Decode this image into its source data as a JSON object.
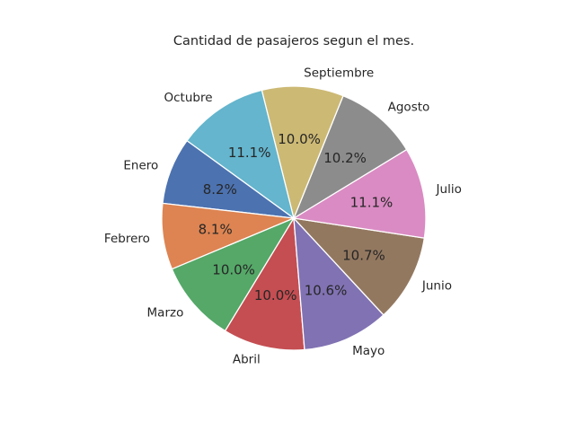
{
  "chart_data": {
    "type": "pie",
    "title": "Cantidad de pasajeros segun el mes.",
    "categories": [
      "Enero",
      "Febrero",
      "Marzo",
      "Abril",
      "Mayo",
      "Junio",
      "Julio",
      "Agosto",
      "Septiembre",
      "Octubre"
    ],
    "values": [
      8.2,
      8.1,
      10.0,
      10.0,
      10.6,
      10.7,
      11.1,
      10.2,
      10.0,
      11.1
    ],
    "percent_labels": [
      "8.2%",
      "8.1%",
      "10.0%",
      "10.0%",
      "10.6%",
      "10.7%",
      "11.1%",
      "10.2%",
      "10.0%",
      "11.1%"
    ],
    "colors": [
      "#4c72b0",
      "#dd8452",
      "#55a868",
      "#c44e52",
      "#8172b3",
      "#937860",
      "#da8bc3",
      "#8c8c8c",
      "#ccb974",
      "#64b5cd"
    ],
    "start_angle_deg": 144,
    "direction": "counterclockwise",
    "legend": "none"
  }
}
